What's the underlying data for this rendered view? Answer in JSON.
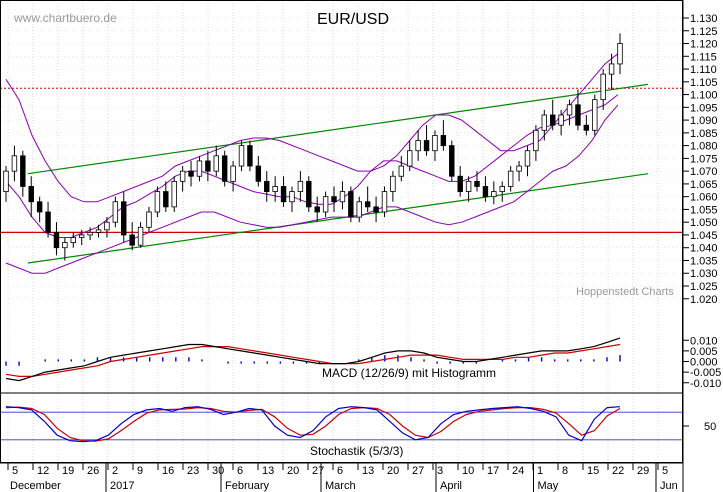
{
  "chart_data": [
    {
      "panel": "price",
      "type": "candlestick",
      "title": "EUR/USD",
      "watermark_top": "www.chartbuero.de",
      "watermark_bottom": "Hoppenstedt Charts",
      "ylim": [
        1.025,
        1.13
      ],
      "y_ticks": [
        "1.130",
        "1.125",
        "1.120",
        "1.115",
        "1.110",
        "1.105",
        "1.100",
        "1.095",
        "1.090",
        "1.085",
        "1.080",
        "1.075",
        "1.070",
        "1.065",
        "1.060",
        "1.055",
        "1.050",
        "1.045",
        "1.040",
        "1.035",
        "1.030",
        "1.025",
        "1.020"
      ],
      "overlays": {
        "resistance_dotted": 1.1025,
        "support_line": 1.046,
        "channel_upper": {
          "start": 1.069,
          "end": 1.104
        },
        "channel_lower": {
          "start": 1.034,
          "end": 1.069
        }
      },
      "candles": [
        [
          1.062,
          1.072,
          1.058,
          1.07
        ],
        [
          1.07,
          1.08,
          1.066,
          1.076
        ],
        [
          1.076,
          1.078,
          1.06,
          1.064
        ],
        [
          1.064,
          1.068,
          1.052,
          1.058
        ],
        [
          1.058,
          1.06,
          1.05,
          1.054
        ],
        [
          1.054,
          1.058,
          1.044,
          1.046
        ],
        [
          1.046,
          1.05,
          1.037,
          1.04
        ],
        [
          1.04,
          1.044,
          1.035,
          1.042
        ],
        [
          1.042,
          1.046,
          1.04,
          1.044
        ],
        [
          1.044,
          1.047,
          1.041,
          1.045
        ],
        [
          1.045,
          1.048,
          1.043,
          1.046
        ],
        [
          1.046,
          1.049,
          1.044,
          1.047
        ],
        [
          1.047,
          1.052,
          1.044,
          1.05
        ],
        [
          1.05,
          1.06,
          1.048,
          1.058
        ],
        [
          1.058,
          1.062,
          1.042,
          1.045
        ],
        [
          1.045,
          1.05,
          1.039,
          1.041
        ],
        [
          1.041,
          1.05,
          1.04,
          1.048
        ],
        [
          1.048,
          1.056,
          1.046,
          1.054
        ],
        [
          1.054,
          1.064,
          1.052,
          1.062
        ],
        [
          1.062,
          1.066,
          1.054,
          1.056
        ],
        [
          1.056,
          1.068,
          1.054,
          1.066
        ],
        [
          1.066,
          1.072,
          1.062,
          1.07
        ],
        [
          1.07,
          1.074,
          1.064,
          1.068
        ],
        [
          1.068,
          1.076,
          1.066,
          1.074
        ],
        [
          1.074,
          1.078,
          1.066,
          1.07
        ],
        [
          1.07,
          1.08,
          1.068,
          1.076
        ],
        [
          1.076,
          1.078,
          1.064,
          1.066
        ],
        [
          1.066,
          1.074,
          1.062,
          1.072
        ],
        [
          1.072,
          1.082,
          1.07,
          1.08
        ],
        [
          1.08,
          1.082,
          1.07,
          1.072
        ],
        [
          1.072,
          1.076,
          1.064,
          1.066
        ],
        [
          1.066,
          1.07,
          1.058,
          1.062
        ],
        [
          1.062,
          1.068,
          1.058,
          1.064
        ],
        [
          1.064,
          1.068,
          1.056,
          1.058
        ],
        [
          1.058,
          1.064,
          1.054,
          1.062
        ],
        [
          1.062,
          1.07,
          1.058,
          1.066
        ],
        [
          1.066,
          1.068,
          1.054,
          1.056
        ],
        [
          1.056,
          1.06,
          1.05,
          1.054
        ],
        [
          1.054,
          1.062,
          1.052,
          1.06
        ],
        [
          1.06,
          1.064,
          1.054,
          1.058
        ],
        [
          1.058,
          1.066,
          1.055,
          1.062
        ],
        [
          1.062,
          1.064,
          1.05,
          1.052
        ],
        [
          1.052,
          1.06,
          1.05,
          1.058
        ],
        [
          1.058,
          1.064,
          1.054,
          1.056
        ],
        [
          1.056,
          1.06,
          1.05,
          1.054
        ],
        [
          1.054,
          1.064,
          1.052,
          1.062
        ],
        [
          1.062,
          1.07,
          1.058,
          1.068
        ],
        [
          1.068,
          1.076,
          1.066,
          1.072
        ],
        [
          1.072,
          1.082,
          1.07,
          1.078
        ],
        [
          1.078,
          1.086,
          1.074,
          1.082
        ],
        [
          1.082,
          1.088,
          1.076,
          1.078
        ],
        [
          1.078,
          1.086,
          1.074,
          1.084
        ],
        [
          1.084,
          1.09,
          1.078,
          1.08
        ],
        [
          1.08,
          1.082,
          1.066,
          1.068
        ],
        [
          1.068,
          1.072,
          1.06,
          1.062
        ],
        [
          1.062,
          1.068,
          1.058,
          1.066
        ],
        [
          1.066,
          1.07,
          1.062,
          1.064
        ],
        [
          1.064,
          1.068,
          1.058,
          1.06
        ],
        [
          1.06,
          1.066,
          1.057,
          1.062
        ],
        [
          1.062,
          1.066,
          1.058,
          1.064
        ],
        [
          1.064,
          1.072,
          1.062,
          1.07
        ],
        [
          1.07,
          1.074,
          1.066,
          1.072
        ],
        [
          1.072,
          1.08,
          1.068,
          1.078
        ],
        [
          1.078,
          1.088,
          1.074,
          1.086
        ],
        [
          1.086,
          1.094,
          1.082,
          1.092
        ],
        [
          1.092,
          1.098,
          1.086,
          1.088
        ],
        [
          1.088,
          1.094,
          1.084,
          1.092
        ],
        [
          1.092,
          1.098,
          1.088,
          1.096
        ],
        [
          1.096,
          1.102,
          1.086,
          1.088
        ],
        [
          1.088,
          1.092,
          1.084,
          1.086
        ],
        [
          1.086,
          1.1,
          1.084,
          1.098
        ],
        [
          1.098,
          1.11,
          1.094,
          1.108
        ],
        [
          1.108,
          1.116,
          1.102,
          1.112
        ],
        [
          1.112,
          1.124,
          1.108,
          1.12
        ]
      ],
      "bollinger_upper": [
        1.106,
        1.098,
        1.084,
        1.074,
        1.066,
        1.06,
        1.058,
        1.058,
        1.06,
        1.062,
        1.064,
        1.066,
        1.068,
        1.072,
        1.074,
        1.076,
        1.078,
        1.08,
        1.082,
        1.083,
        1.083,
        1.082,
        1.08,
        1.078,
        1.076,
        1.074,
        1.072,
        1.07,
        1.07,
        1.072,
        1.076,
        1.082,
        1.088,
        1.092,
        1.092,
        1.09,
        1.086,
        1.082,
        1.078,
        1.078,
        1.08,
        1.082,
        1.088,
        1.094,
        1.1,
        1.106,
        1.112,
        1.116
      ],
      "bollinger_middle": [
        1.066,
        1.06,
        1.052,
        1.046,
        1.044,
        1.044,
        1.046,
        1.048,
        1.052,
        1.056,
        1.058,
        1.061,
        1.064,
        1.068,
        1.07,
        1.07,
        1.068,
        1.066,
        1.064,
        1.062,
        1.061,
        1.06,
        1.06,
        1.058,
        1.057,
        1.057,
        1.06,
        1.064,
        1.07,
        1.074,
        1.074,
        1.072,
        1.07,
        1.068,
        1.066,
        1.066,
        1.068,
        1.072,
        1.076,
        1.08,
        1.084,
        1.087,
        1.088,
        1.09,
        1.092,
        1.094,
        1.096,
        1.1
      ],
      "bollinger_lower": [
        1.034,
        1.032,
        1.03,
        1.03,
        1.032,
        1.034,
        1.036,
        1.038,
        1.04,
        1.042,
        1.044,
        1.046,
        1.048,
        1.05,
        1.052,
        1.054,
        1.054,
        1.052,
        1.05,
        1.049,
        1.048,
        1.048,
        1.049,
        1.05,
        1.051,
        1.052,
        1.052,
        1.052,
        1.054,
        1.056,
        1.056,
        1.054,
        1.052,
        1.05,
        1.049,
        1.05,
        1.052,
        1.054,
        1.056,
        1.058,
        1.062,
        1.066,
        1.07,
        1.072,
        1.076,
        1.082,
        1.09,
        1.096
      ]
    },
    {
      "panel": "macd",
      "type": "line+histogram",
      "label": "MACD (12/26/9) mit Histogramm",
      "ylim": [
        -0.012,
        0.012
      ],
      "y_ticks": [
        "0.010",
        "0.005",
        "0.000",
        "-0.005",
        "-0.010"
      ],
      "macd": [
        -0.008,
        -0.009,
        -0.007,
        -0.005,
        -0.004,
        -0.003,
        -0.002,
        0.0,
        0.002,
        0.003,
        0.004,
        0.005,
        0.006,
        0.007,
        0.008,
        0.008,
        0.007,
        0.006,
        0.005,
        0.004,
        0.003,
        0.002,
        0.001,
        0.0,
        -0.001,
        -0.001,
        -0.001,
        0.0,
        0.002,
        0.004,
        0.005,
        0.005,
        0.004,
        0.002,
        0.001,
        0.0,
        0.0,
        0.001,
        0.002,
        0.003,
        0.004,
        0.005,
        0.005,
        0.005,
        0.006,
        0.007,
        0.009,
        0.011
      ],
      "signal": [
        -0.006,
        -0.007,
        -0.007,
        -0.006,
        -0.005,
        -0.004,
        -0.003,
        -0.002,
        0.0,
        0.001,
        0.002,
        0.003,
        0.004,
        0.005,
        0.006,
        0.007,
        0.007,
        0.007,
        0.006,
        0.005,
        0.004,
        0.003,
        0.002,
        0.001,
        0.0,
        -0.001,
        -0.001,
        -0.001,
        0.0,
        0.001,
        0.002,
        0.003,
        0.003,
        0.003,
        0.002,
        0.001,
        0.001,
        0.001,
        0.001,
        0.002,
        0.002,
        0.003,
        0.004,
        0.004,
        0.005,
        0.006,
        0.007,
        0.008
      ],
      "histogram": [
        -0.002,
        -0.002,
        0.0,
        0.001,
        0.001,
        0.001,
        0.001,
        0.002,
        0.002,
        0.002,
        0.002,
        0.002,
        0.002,
        0.002,
        0.002,
        0.001,
        0.0,
        -0.001,
        -0.001,
        -0.001,
        -0.001,
        -0.001,
        -0.001,
        -0.001,
        -0.001,
        0.0,
        0.0,
        0.001,
        0.002,
        0.003,
        0.003,
        0.002,
        0.001,
        -0.001,
        -0.001,
        -0.001,
        -0.001,
        0.0,
        0.001,
        0.001,
        0.002,
        0.002,
        0.001,
        0.001,
        0.001,
        0.001,
        0.002,
        0.003
      ]
    },
    {
      "panel": "stochastic",
      "type": "line",
      "label": "Stochastik (5/3/3)",
      "ylim": [
        0,
        100
      ],
      "y_ticks": [
        "50"
      ],
      "reference_lines": [
        80,
        20
      ],
      "k": [
        92,
        90,
        85,
        60,
        30,
        18,
        16,
        18,
        30,
        55,
        75,
        85,
        88,
        82,
        90,
        92,
        86,
        75,
        80,
        88,
        85,
        50,
        30,
        25,
        40,
        70,
        88,
        92,
        90,
        85,
        60,
        35,
        20,
        25,
        55,
        75,
        82,
        85,
        88,
        90,
        92,
        88,
        82,
        70,
        30,
        18,
        65,
        90,
        92
      ],
      "d": [
        90,
        91,
        88,
        75,
        45,
        25,
        18,
        17,
        22,
        40,
        60,
        78,
        85,
        86,
        87,
        90,
        88,
        82,
        80,
        84,
        86,
        70,
        45,
        30,
        32,
        50,
        75,
        88,
        90,
        88,
        75,
        50,
        30,
        25,
        38,
        60,
        75,
        82,
        85,
        88,
        90,
        90,
        86,
        78,
        55,
        30,
        40,
        72,
        88
      ]
    }
  ],
  "x_axis": {
    "day_labels": [
      "5",
      "12",
      "19",
      "26",
      "2",
      "9",
      "16",
      "23",
      "30",
      "6",
      "13",
      "20",
      "27",
      "6",
      "13",
      "20",
      "27",
      "3",
      "10",
      "17",
      "24",
      "1",
      "8",
      "15",
      "22",
      "29",
      "5"
    ],
    "month_labels": [
      "December",
      "2017",
      "February",
      "March",
      "April",
      "May",
      "Jun"
    ]
  },
  "colors": {
    "candle": "#000000",
    "bollinger": "#8a00b0",
    "channel": "#008800",
    "support": "#cc0000",
    "resistance": "#cc0000",
    "macd": "#000000",
    "signal": "#cc0000",
    "histogram": "#0000cc",
    "stoch_k": "#0000cc",
    "stoch_d": "#cc0000",
    "grid": "#999999"
  }
}
